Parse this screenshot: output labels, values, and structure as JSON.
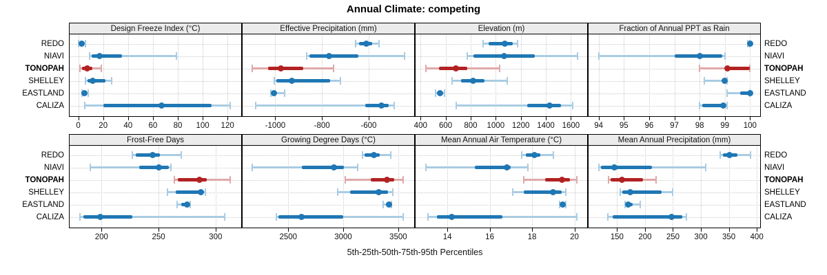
{
  "title": "Annual Climate: competing",
  "xlabel": "5th-25th-50th-75th-95th Percentiles",
  "sites": [
    "REDO",
    "NIAVI",
    "TONOPAH",
    "SHELLEY",
    "EASTLAND",
    "CALIZA"
  ],
  "highlight_site": "TONOPAH",
  "colors": {
    "blue": "#1f77b4",
    "blue_light": "#a9cce3",
    "red": "#b22222",
    "red_light": "#e0a8a8",
    "strip_bg": "#ebebeb",
    "grid": "#c9c9c9",
    "border": "#000000"
  },
  "chart_data": {
    "type": "dot-interval",
    "note": "each series value array is [p5, p25, p50, p75, p95]",
    "legend_position": "none",
    "grid": "dotted",
    "panels": [
      {
        "label": "Design Freeze Index (°C)",
        "domain": [
          -7,
          131
        ],
        "ticks": [
          0,
          20,
          40,
          60,
          80,
          100,
          120
        ],
        "series": {
          "REDO": [
            0,
            1,
            2.5,
            4.5,
            6
          ],
          "NIAVI": [
            9,
            11,
            17,
            35,
            79
          ],
          "TONOPAH": [
            1.5,
            3,
            7,
            11.5,
            18.5
          ],
          "SHELLEY": [
            6,
            7.5,
            11.5,
            22,
            27
          ],
          "EASTLAND": [
            3,
            4,
            5,
            6.5,
            8
          ],
          "CALIZA": [
            5,
            20,
            67,
            107,
            122
          ]
        }
      },
      {
        "label": "Effective Precipitation (mm)",
        "domain": [
          -1140,
          -405
        ],
        "ticks": [
          -1000,
          -800,
          -600
        ],
        "series": {
          "REDO": [
            -655,
            -640,
            -610,
            -585,
            -555
          ],
          "NIAVI": [
            -865,
            -855,
            -770,
            -645,
            -445
          ],
          "TONOPAH": [
            -1100,
            -1030,
            -975,
            -880,
            -750
          ],
          "SHELLEY": [
            -1005,
            -995,
            -930,
            -765,
            -720
          ],
          "EASTLAND": [
            -1020,
            -1015,
            -1005,
            -995,
            -960
          ],
          "CALIZA": [
            -1085,
            -615,
            -545,
            -515,
            -490
          ]
        }
      },
      {
        "label": "Elevation (m)",
        "domain": [
          360,
          1730
        ],
        "ticks": [
          400,
          600,
          800,
          1000,
          1200,
          1400,
          1600
        ],
        "series": {
          "REDO": [
            900,
            945,
            1070,
            1135,
            1175
          ],
          "NIAVI": [
            775,
            820,
            1065,
            1310,
            1655
          ],
          "TONOPAH": [
            440,
            545,
            680,
            775,
            1030
          ],
          "SHELLEY": [
            650,
            725,
            820,
            910,
            1090
          ],
          "EASTLAND": [
            520,
            535,
            555,
            580,
            590
          ],
          "CALIZA": [
            685,
            1250,
            1430,
            1520,
            1615
          ]
        }
      },
      {
        "label": "Fraction of Annual PPT as Rain",
        "domain": [
          93.6,
          100.4
        ],
        "ticks": [
          94,
          95,
          96,
          97,
          98,
          99,
          100
        ],
        "series": {
          "REDO": [
            99.9,
            99.95,
            100,
            100,
            100
          ],
          "NIAVI": [
            94.0,
            97.0,
            98.0,
            98.9,
            99.0
          ],
          "TONOPAH": [
            98.0,
            99.0,
            99.1,
            100.0,
            100.0
          ],
          "SHELLEY": [
            98.2,
            98.9,
            99.0,
            99.05,
            99.1
          ],
          "EASTLAND": [
            99.1,
            99.6,
            100.0,
            100.0,
            100.0
          ],
          "CALIZA": [
            98.0,
            98.1,
            98.95,
            99.0,
            99.1
          ]
        }
      },
      {
        "label": "Frost-Free Days",
        "domain": [
          172,
          322.5
        ],
        "ticks": [
          200,
          250,
          300
        ],
        "series": {
          "REDO": [
            227,
            230,
            245,
            251,
            270
          ],
          "NIAVI": [
            190,
            233,
            250,
            259,
            261
          ],
          "TONOPAH": [
            264,
            267,
            286,
            292,
            313
          ],
          "SHELLEY": [
            258,
            265,
            287,
            290,
            291
          ],
          "EASTLAND": [
            266,
            270,
            275,
            277,
            278
          ],
          "CALIZA": [
            181,
            184,
            199,
            227,
            308
          ]
        }
      },
      {
        "label": "Growing Degree Days (°C)",
        "domain": [
          2085,
          3645
        ],
        "ticks": [
          2500,
          3000,
          3500
        ],
        "series": {
          "REDO": [
            3175,
            3195,
            3280,
            3330,
            3435
          ],
          "NIAVI": [
            2175,
            2625,
            2915,
            3005,
            3130
          ],
          "TONOPAH": [
            3020,
            3250,
            3395,
            3465,
            3545
          ],
          "SHELLEY": [
            2950,
            3060,
            3320,
            3410,
            3450
          ],
          "EASTLAND": [
            3365,
            3385,
            3415,
            3430,
            3440
          ],
          "CALIZA": [
            2390,
            2410,
            2620,
            3000,
            3545
          ]
        }
      },
      {
        "label": "Mean Annual Air Temperature (°C)",
        "domain": [
          12.5,
          20.6
        ],
        "ticks": [
          14,
          16,
          18,
          20
        ],
        "series": {
          "REDO": [
            17.5,
            17.7,
            18.1,
            18.4,
            19.0
          ],
          "NIAVI": [
            13.0,
            15.3,
            16.8,
            17.0,
            17.8
          ],
          "TONOPAH": [
            17.6,
            18.6,
            19.4,
            19.8,
            20.1
          ],
          "SHELLEY": [
            17.1,
            17.6,
            19.0,
            19.4,
            19.6
          ],
          "EASTLAND": [
            19.3,
            19.35,
            19.45,
            19.55,
            19.6
          ],
          "CALIZA": [
            13.1,
            13.5,
            14.2,
            16.6,
            20.1
          ]
        }
      },
      {
        "label": "Mean Annual Precipitation (mm)",
        "domain": [
          99,
          406
        ],
        "ticks": [
          150,
          200,
          250,
          300,
          350,
          400
        ],
        "series": {
          "REDO": [
            335,
            340,
            351,
            365,
            389
          ],
          "NIAVI": [
            117,
            121,
            145,
            212,
            309
          ],
          "TONOPAH": [
            135,
            139,
            159,
            196,
            220
          ],
          "SHELLEY": [
            156,
            160,
            173,
            230,
            250
          ],
          "EASTLAND": [
            164,
            166,
            170,
            178,
            192
          ],
          "CALIZA": [
            133,
            142,
            247,
            267,
            274
          ]
        }
      }
    ]
  }
}
